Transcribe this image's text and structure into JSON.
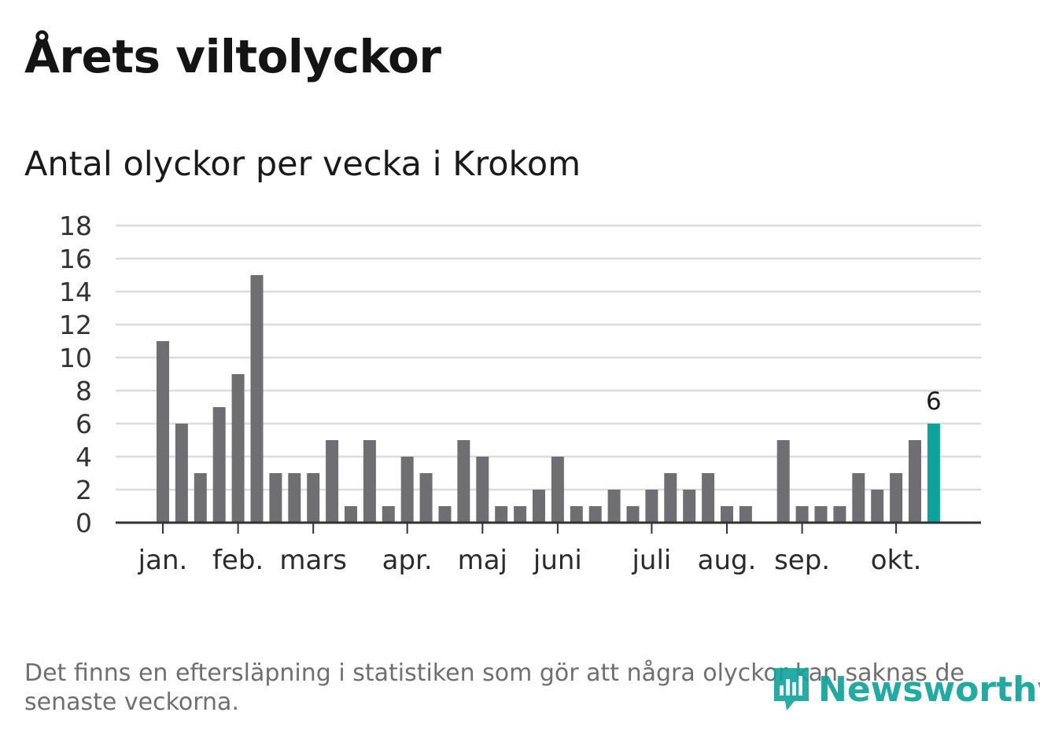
{
  "header": {
    "title": "Årets viltolyckor",
    "subtitle": "Antal olyckor per vecka i Krokom"
  },
  "colors": {
    "bar": "#6f6e73",
    "highlight": "#0ea39a",
    "grid": "#dcdcdc",
    "axis": "#333333"
  },
  "chart_data": {
    "type": "bar",
    "title": "Antal olyckor per vecka i Krokom",
    "xlabel": "",
    "ylabel": "",
    "ylim": [
      0,
      18
    ],
    "yticks": [
      0,
      2,
      4,
      6,
      8,
      10,
      12,
      14,
      16,
      18
    ],
    "grid": true,
    "weeks": [
      1,
      2,
      3,
      4,
      5,
      6,
      7,
      8,
      9,
      10,
      11,
      12,
      13,
      14,
      15,
      16,
      17,
      18,
      19,
      20,
      21,
      22,
      23,
      24,
      25,
      26,
      27,
      28,
      29,
      30,
      31,
      32,
      33,
      34,
      35,
      36,
      37,
      38,
      39,
      40,
      41,
      42
    ],
    "values": [
      11,
      6,
      3,
      7,
      9,
      15,
      3,
      3,
      3,
      5,
      1,
      5,
      1,
      4,
      3,
      1,
      5,
      4,
      1,
      1,
      2,
      4,
      1,
      1,
      2,
      1,
      2,
      3,
      2,
      3,
      1,
      1,
      0,
      5,
      1,
      1,
      1,
      3,
      2,
      3,
      5,
      6
    ],
    "highlight_index": 41,
    "highlight_label": "6",
    "month_labels": [
      {
        "label": "jan.",
        "week": 1
      },
      {
        "label": "feb.",
        "week": 5
      },
      {
        "label": "mars",
        "week": 9
      },
      {
        "label": "apr.",
        "week": 14
      },
      {
        "label": "maj",
        "week": 18
      },
      {
        "label": "juni",
        "week": 22
      },
      {
        "label": "juli",
        "week": 27
      },
      {
        "label": "aug.",
        "week": 31
      },
      {
        "label": "sep.",
        "week": 35
      },
      {
        "label": "okt.",
        "week": 40
      }
    ]
  },
  "footer": {
    "note": "Det finns en eftersläpning i statistiken som gör att några olyckor kan saknas de senaste veckorna.",
    "logo_text": "Newsworthy"
  }
}
